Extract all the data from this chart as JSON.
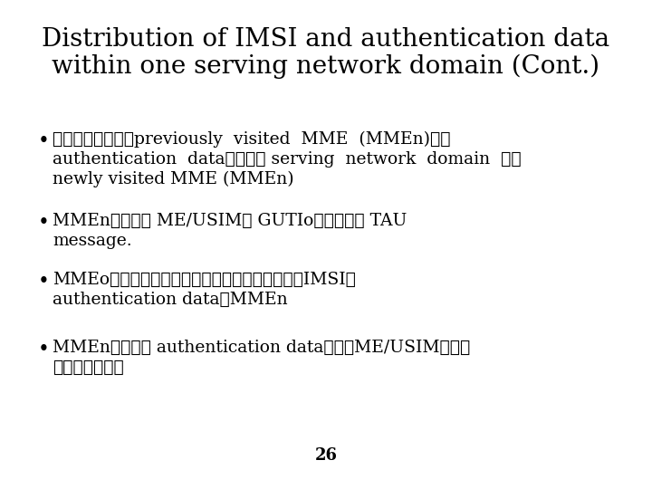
{
  "title_line1": "Distribution of IMSI and authentication data",
  "title_line2": "within one serving network domain (Cont.)",
  "bullet1_line1": "此程序的目的在讓previously  visited  MME  (MMEn)提供",
  "bullet1_line2": "authentication  data給同一個 serving  network  domain  下的",
  "bullet1_line3": "newly visited MME (MMEn)",
  "bullet2_line1": "MMEn首先傳送 ME/USIM的 GUTIo與所收到的 TAU",
  "bullet2_line2": "message.",
  "bullet3_line1": "MMEo由資料庫搜尋使用者的資訊，並回傳對應的IMSI與",
  "bullet3_line2": "authentication data給MMEn",
  "bullet4_line1": "MMEn即可使用 authentication data後續與ME/USIM做身份",
  "bullet4_line2": "認證與金鑰協定",
  "page_number": "26",
  "bg_color": "#ffffff",
  "text_color": "#000000",
  "title_fontsize": 20,
  "bullet_fontsize": 13.5,
  "page_fontsize": 13
}
